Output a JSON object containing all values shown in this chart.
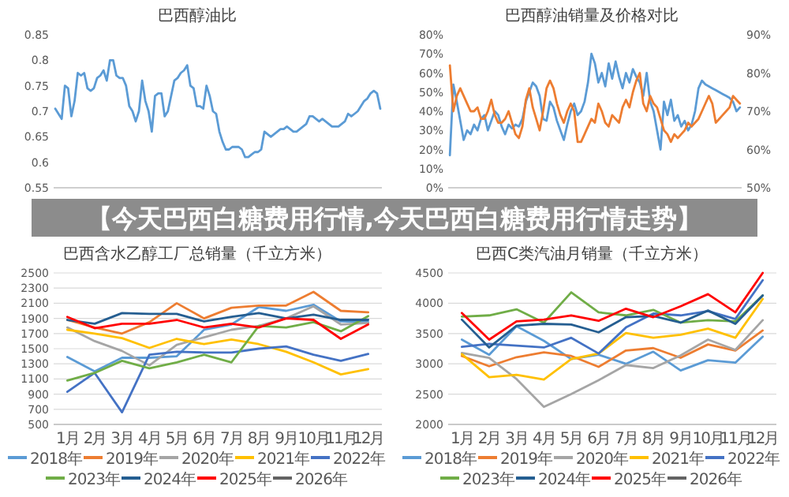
{
  "chart_data": [
    {
      "type": "line",
      "title": "巴西醇油比",
      "ylim": [
        0.55,
        0.85
      ],
      "yticks": [
        0.55,
        0.6,
        0.65,
        0.7,
        0.75,
        0.8,
        0.85
      ],
      "grid": false,
      "categories": [
        null,
        null,
        null,
        null,
        null,
        null,
        null,
        null,
        null,
        null,
        null,
        null,
        null,
        null,
        null,
        null,
        null,
        null,
        null,
        null,
        null,
        null,
        null,
        null,
        null,
        null,
        null,
        null,
        null,
        null,
        null,
        null,
        null,
        null,
        null,
        null,
        null,
        null,
        null,
        null,
        null,
        null,
        null,
        null,
        null,
        null,
        null,
        null,
        null,
        null,
        null,
        null,
        null,
        null,
        null,
        null,
        null,
        null,
        null,
        null,
        null,
        null,
        null,
        null,
        null,
        null,
        null,
        null,
        null,
        null,
        null,
        null,
        null,
        null,
        null,
        null,
        null,
        null,
        null,
        null,
        null,
        null,
        null,
        null,
        null,
        null,
        null,
        null,
        null,
        null,
        null,
        null,
        null,
        null,
        null,
        null,
        null,
        null,
        null,
        null,
        null,
        null
      ],
      "series": [
        {
          "color": "#5b9bd5",
          "values": [
            0.705,
            0.695,
            0.685,
            0.75,
            0.745,
            0.69,
            0.72,
            0.775,
            0.77,
            0.775,
            0.745,
            0.74,
            0.745,
            0.765,
            0.77,
            0.78,
            0.76,
            0.8,
            0.8,
            0.77,
            0.765,
            0.765,
            0.75,
            0.71,
            0.7,
            0.68,
            0.7,
            0.76,
            0.72,
            0.7,
            0.66,
            0.73,
            0.735,
            0.735,
            0.69,
            0.7,
            0.73,
            0.76,
            0.765,
            0.775,
            0.78,
            0.79,
            0.75,
            0.745,
            0.71,
            0.71,
            0.705,
            0.75,
            0.73,
            0.7,
            0.695,
            0.66,
            0.64,
            0.625,
            0.625,
            0.63,
            0.63,
            0.63,
            0.625,
            0.61,
            0.61,
            0.615,
            0.62,
            0.62,
            0.625,
            0.66,
            0.655,
            0.65,
            0.655,
            0.66,
            0.665,
            0.665,
            0.67,
            0.665,
            0.66,
            0.66,
            0.665,
            0.67,
            0.675,
            0.69,
            0.69,
            0.685,
            0.68,
            0.685,
            0.68,
            0.675,
            0.67,
            0.67,
            0.67,
            0.675,
            0.68,
            0.695,
            0.69,
            0.695,
            0.7,
            0.71,
            0.72,
            0.725,
            0.735,
            0.74,
            0.735,
            0.705
          ]
        }
      ]
    },
    {
      "type": "line",
      "title": "巴西醇油销量及价格对比",
      "ylim": [
        0,
        80
      ],
      "yticks": [
        {
          "value": 0,
          "label": "0%"
        },
        {
          "value": 10,
          "label": "10%"
        },
        {
          "value": 20,
          "label": "20%"
        },
        {
          "value": 30,
          "label": "30%"
        },
        {
          "value": 40,
          "label": "40%"
        },
        {
          "value": 50,
          "label": "50%"
        },
        {
          "value": 60,
          "label": "60%"
        },
        {
          "value": 70,
          "label": "70%"
        },
        {
          "value": 80,
          "label": "80%"
        }
      ],
      "y2lim": [
        50,
        90
      ],
      "y2ticks": [
        {
          "value": 50,
          "label": "50%"
        },
        {
          "value": 60,
          "label": "60%"
        },
        {
          "value": 70,
          "label": "70%"
        },
        {
          "value": 80,
          "label": "80%"
        },
        {
          "value": 90,
          "label": "90%"
        }
      ],
      "grid": false,
      "categories": [
        null,
        null,
        null,
        null,
        null,
        null,
        null,
        null,
        null,
        null,
        null,
        null,
        null,
        null,
        null,
        null,
        null,
        null,
        null,
        null,
        null,
        null,
        null,
        null,
        null,
        null,
        null,
        null,
        null,
        null,
        null,
        null,
        null,
        null,
        null,
        null,
        null,
        null,
        null,
        null,
        null,
        null,
        null,
        null,
        null,
        null,
        null,
        null,
        null,
        null,
        null,
        null,
        null,
        null,
        null,
        null,
        null,
        null,
        null,
        null,
        null,
        null,
        null,
        null,
        null,
        null,
        null,
        null,
        null,
        null,
        null,
        null,
        null,
        null,
        null,
        null,
        null,
        null,
        null,
        null,
        null,
        null,
        null,
        null,
        null
      ],
      "series": [
        {
          "color": "#5b9bd5",
          "values": [
            17,
            54,
            45,
            35,
            25,
            30,
            28,
            33,
            30,
            36,
            38,
            30,
            35,
            40,
            38,
            32,
            28,
            33,
            31,
            33,
            32,
            36,
            45,
            50,
            55,
            53,
            48,
            36,
            35,
            45,
            42,
            35,
            30,
            25,
            33,
            40,
            44,
            38,
            40,
            45,
            55,
            70,
            65,
            55,
            60,
            53,
            65,
            57,
            66,
            58,
            52,
            60,
            55,
            62,
            58,
            55,
            48,
            60,
            45,
            40,
            30,
            20,
            45,
            38,
            46,
            35,
            38,
            32,
            35,
            30,
            33,
            40,
            52,
            56,
            54,
            53,
            52,
            51,
            50,
            49,
            48,
            47,
            45,
            40,
            42
          ]
        },
        {
          "color": "#ed7d31",
          "axis": "y2",
          "values": [
            82,
            70,
            74,
            76,
            74,
            72,
            70,
            70,
            71,
            68,
            68,
            70,
            73,
            69,
            67,
            67,
            68,
            70,
            67,
            64,
            63,
            66,
            73,
            76,
            71,
            68,
            65,
            70,
            76,
            78,
            76,
            72,
            69,
            67,
            70,
            72,
            70,
            62,
            62,
            64,
            66,
            68,
            67,
            72,
            70,
            67,
            66,
            69,
            68,
            67,
            71,
            73,
            71,
            75,
            78,
            80,
            72,
            70,
            74,
            72,
            71,
            68,
            65,
            64,
            62,
            64,
            63,
            64,
            65,
            67,
            66,
            67,
            68,
            70,
            72,
            74,
            72,
            67,
            68,
            69,
            70,
            71,
            74,
            73,
            72
          ]
        }
      ]
    },
    {
      "type": "other",
      "title": "【今天巴西白糖费用行情,今天巴西白糖费用行情走势】"
    },
    {
      "type": "line",
      "title": "巴西含水乙醇工厂总销量（千立方米）",
      "ylim": [
        500,
        2500
      ],
      "yticks": [
        500,
        700,
        900,
        1100,
        1300,
        1500,
        1700,
        1900,
        2100,
        2300,
        2500
      ],
      "grid": "y",
      "legend": "bottom",
      "categories": [
        "1月",
        "2月",
        "3月",
        "4月",
        "5月",
        "6月",
        "7月",
        "8月",
        "9月",
        "10月",
        "11月",
        "12月"
      ],
      "series": [
        {
          "name": "2018年",
          "color": "#5b9bd5",
          "values": [
            1390,
            1200,
            1380,
            1380,
            1400,
            1750,
            1820,
            2050,
            2000,
            2080,
            1860,
            1850
          ]
        },
        {
          "name": "2019年",
          "color": "#ed7d31",
          "values": [
            1880,
            1780,
            1700,
            1850,
            2100,
            1900,
            2040,
            2070,
            2070,
            2250,
            2000,
            1980
          ]
        },
        {
          "name": "2020年",
          "color": "#a5a5a5",
          "values": [
            1780,
            1600,
            1470,
            1280,
            1550,
            1650,
            1750,
            1800,
            1900,
            2060,
            1820,
            1840
          ]
        },
        {
          "name": "2021年",
          "color": "#ffc000",
          "values": [
            1750,
            1700,
            1640,
            1510,
            1630,
            1560,
            1620,
            1560,
            1460,
            1320,
            1160,
            1230
          ]
        },
        {
          "name": "2022年",
          "color": "#4472c4",
          "values": [
            930,
            1180,
            660,
            1420,
            1460,
            1450,
            1450,
            1500,
            1530,
            1420,
            1340,
            1430
          ]
        },
        {
          "name": "2023年",
          "color": "#70ad47",
          "values": [
            1080,
            1180,
            1340,
            1240,
            1320,
            1420,
            1320,
            1800,
            1780,
            1850,
            1730,
            1930
          ]
        },
        {
          "name": "2024年",
          "color": "#255e91",
          "values": [
            1880,
            1830,
            1970,
            1960,
            1960,
            1860,
            1920,
            1970,
            1900,
            1950,
            1880,
            1880
          ]
        },
        {
          "name": "2025年",
          "color": "#ff0000",
          "values": [
            1920,
            1770,
            1830,
            1830,
            1880,
            1780,
            1830,
            1780,
            1900,
            1880,
            1630,
            1820
          ]
        },
        {
          "name": "2026年",
          "color": "#636363",
          "values": [
            null,
            null,
            null,
            null,
            null,
            null,
            null,
            null,
            null,
            null,
            null,
            null
          ]
        }
      ]
    },
    {
      "type": "line",
      "title": "巴西C类汽油月销量（千立方米）",
      "ylim": [
        2000,
        4500
      ],
      "yticks": [
        2000,
        2500,
        3000,
        3500,
        4000,
        4500
      ],
      "grid": "y",
      "legend": "bottom",
      "categories": [
        "1月",
        "2月",
        "3月",
        "4月",
        "5月",
        "6月",
        "7月",
        "8月",
        "9月",
        "10月",
        "11月",
        "12月"
      ],
      "series": [
        {
          "name": "2018年",
          "color": "#5b9bd5",
          "values": [
            3400,
            3150,
            3620,
            3380,
            3080,
            3150,
            3000,
            3200,
            2890,
            3060,
            3020,
            3450
          ]
        },
        {
          "name": "2019年",
          "color": "#ed7d31",
          "values": [
            3130,
            2960,
            3110,
            3190,
            3130,
            2950,
            3220,
            3260,
            3100,
            3320,
            3220,
            3550
          ]
        },
        {
          "name": "2020年",
          "color": "#a5a5a5",
          "values": [
            3180,
            3100,
            2750,
            2290,
            2500,
            2730,
            2980,
            2930,
            3140,
            3400,
            3230,
            3720
          ]
        },
        {
          "name": "2021年",
          "color": "#ffc000",
          "values": [
            3160,
            2780,
            2820,
            2740,
            3080,
            3170,
            3510,
            3430,
            3480,
            3580,
            3430,
            4070
          ]
        },
        {
          "name": "2022年",
          "color": "#4472c4",
          "values": [
            3280,
            3330,
            3300,
            3270,
            3430,
            3170,
            3600,
            3830,
            3800,
            3870,
            3740,
            4380
          ]
        },
        {
          "name": "2023年",
          "color": "#70ad47",
          "values": [
            3780,
            3800,
            3900,
            3680,
            4180,
            3850,
            3800,
            3890,
            3680,
            3720,
            3700,
            4130
          ]
        },
        {
          "name": "2024年",
          "color": "#255e91",
          "values": [
            3730,
            3270,
            3630,
            3660,
            3650,
            3520,
            3770,
            3790,
            3680,
            3880,
            3660,
            4130
          ]
        },
        {
          "name": "2025年",
          "color": "#ff0000",
          "values": [
            3840,
            3400,
            3700,
            3730,
            3800,
            3710,
            3910,
            3770,
            3950,
            4150,
            3850,
            4500
          ]
        },
        {
          "name": "2026年",
          "color": "#636363",
          "values": [
            null,
            null,
            null,
            null,
            null,
            null,
            null,
            null,
            null,
            null,
            null,
            null
          ]
        }
      ]
    }
  ]
}
